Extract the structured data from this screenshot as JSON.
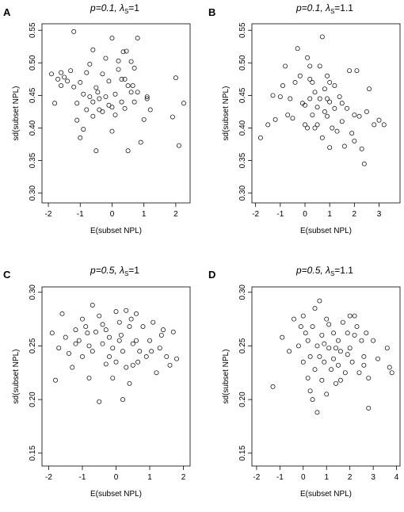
{
  "figure": {
    "panels": [
      {
        "letter": "A",
        "title_main": "p=0.1, λ",
        "title_sub": "S",
        "title_tail": "=1"
      },
      {
        "letter": "B",
        "title_main": "p=0.1, λ",
        "title_sub": "S",
        "title_tail": "=1.1"
      },
      {
        "letter": "C",
        "title_main": "p=0.5, λ",
        "title_sub": "S",
        "title_tail": "=1"
      },
      {
        "letter": "D",
        "title_main": "p=0.5, λ",
        "title_sub": "S",
        "title_tail": "=1.1"
      }
    ]
  },
  "chart_data": [
    {
      "type": "scatter",
      "panel": "A",
      "xlabel": "E(subset NPL)",
      "ylabel": "sd(subset NPL)",
      "xlim": [
        -2.2,
        2.45
      ],
      "ylim": [
        0.285,
        0.56
      ],
      "xticks": [
        -2,
        -1,
        0,
        1,
        2
      ],
      "yticks": [
        0.3,
        0.35,
        0.4,
        0.45,
        0.5,
        0.55
      ],
      "ytick_labels": [
        "0.30",
        "0.35",
        "0.40",
        "0.45",
        "0.50",
        "0.55"
      ],
      "points": [
        [
          -1.9,
          0.483
        ],
        [
          -1.8,
          0.438
        ],
        [
          -1.7,
          0.475
        ],
        [
          -1.6,
          0.465
        ],
        [
          -1.6,
          0.485
        ],
        [
          -1.5,
          0.478
        ],
        [
          -1.4,
          0.472
        ],
        [
          -1.3,
          0.488
        ],
        [
          -1.2,
          0.548
        ],
        [
          -1.2,
          0.463
        ],
        [
          -1.1,
          0.438
        ],
        [
          -1.1,
          0.412
        ],
        [
          -1.0,
          0.385
        ],
        [
          -1.0,
          0.47
        ],
        [
          -0.9,
          0.452
        ],
        [
          -0.9,
          0.398
        ],
        [
          -0.8,
          0.428
        ],
        [
          -0.8,
          0.485
        ],
        [
          -0.7,
          0.498
        ],
        [
          -0.7,
          0.448
        ],
        [
          -0.6,
          0.44
        ],
        [
          -0.6,
          0.418
        ],
        [
          -0.5,
          0.365
        ],
        [
          -0.5,
          0.462
        ],
        [
          -0.4,
          0.428
        ],
        [
          -0.4,
          0.445
        ],
        [
          -0.3,
          0.483
        ],
        [
          -0.3,
          0.425
        ],
        [
          -0.2,
          0.507
        ],
        [
          -0.2,
          0.448
        ],
        [
          -0.1,
          0.435
        ],
        [
          -0.1,
          0.472
        ],
        [
          0.0,
          0.538
        ],
        [
          0.0,
          0.432
        ],
        [
          0.0,
          0.395
        ],
        [
          0.1,
          0.42
        ],
        [
          0.1,
          0.452
        ],
        [
          0.2,
          0.49
        ],
        [
          0.2,
          0.503
        ],
        [
          0.3,
          0.475
        ],
        [
          0.3,
          0.44
        ],
        [
          0.4,
          0.43
        ],
        [
          0.4,
          0.475
        ],
        [
          0.5,
          0.465
        ],
        [
          0.5,
          0.365
        ],
        [
          0.6,
          0.502
        ],
        [
          0.6,
          0.455
        ],
        [
          0.7,
          0.492
        ],
        [
          0.7,
          0.44
        ],
        [
          0.8,
          0.538
        ],
        [
          0.8,
          0.455
        ],
        [
          0.9,
          0.378
        ],
        [
          1.0,
          0.413
        ],
        [
          1.1,
          0.445
        ],
        [
          1.1,
          0.448
        ],
        [
          1.2,
          0.428
        ],
        [
          1.9,
          0.417
        ],
        [
          2.0,
          0.477
        ],
        [
          2.1,
          0.373
        ],
        [
          2.25,
          0.438
        ],
        [
          -0.6,
          0.52
        ],
        [
          -0.45,
          0.455
        ],
        [
          0.35,
          0.517
        ],
        [
          0.45,
          0.518
        ],
        [
          0.65,
          0.465
        ]
      ]
    },
    {
      "type": "scatter",
      "panel": "B",
      "xlabel": "E(subset NPL)",
      "ylabel": "sd(subset NPL)",
      "xlim": [
        -2.15,
        3.85
      ],
      "ylim": [
        0.285,
        0.56
      ],
      "xticks": [
        -2,
        -1,
        0,
        1,
        2,
        3
      ],
      "yticks": [
        0.3,
        0.35,
        0.4,
        0.45,
        0.5,
        0.55
      ],
      "ytick_labels": [
        "0.30",
        "0.35",
        "0.40",
        "0.45",
        "0.50",
        "0.55"
      ],
      "points": [
        [
          -1.8,
          0.385
        ],
        [
          -1.5,
          0.405
        ],
        [
          -1.3,
          0.45
        ],
        [
          -1.2,
          0.413
        ],
        [
          -1.0,
          0.448
        ],
        [
          -0.9,
          0.465
        ],
        [
          -0.7,
          0.42
        ],
        [
          -0.6,
          0.445
        ],
        [
          -0.5,
          0.415
        ],
        [
          -0.4,
          0.47
        ],
        [
          -0.3,
          0.522
        ],
        [
          -0.2,
          0.48
        ],
        [
          -0.1,
          0.438
        ],
        [
          0.0,
          0.435
        ],
        [
          0.0,
          0.405
        ],
        [
          0.1,
          0.508
        ],
        [
          0.1,
          0.4
        ],
        [
          0.2,
          0.475
        ],
        [
          0.2,
          0.445
        ],
        [
          0.3,
          0.47
        ],
        [
          0.3,
          0.42
        ],
        [
          0.4,
          0.4
        ],
        [
          0.4,
          0.455
        ],
        [
          0.5,
          0.405
        ],
        [
          0.5,
          0.432
        ],
        [
          0.6,
          0.445
        ],
        [
          0.7,
          0.54
        ],
        [
          0.7,
          0.385
        ],
        [
          0.8,
          0.46
        ],
        [
          0.8,
          0.425
        ],
        [
          0.9,
          0.445
        ],
        [
          0.9,
          0.418
        ],
        [
          1.0,
          0.47
        ],
        [
          1.0,
          0.44
        ],
        [
          1.1,
          0.4
        ],
        [
          1.2,
          0.43
        ],
        [
          1.3,
          0.395
        ],
        [
          1.4,
          0.448
        ],
        [
          1.5,
          0.41
        ],
        [
          1.6,
          0.372
        ],
        [
          1.7,
          0.43
        ],
        [
          1.8,
          0.488
        ],
        [
          1.9,
          0.392
        ],
        [
          2.0,
          0.38
        ],
        [
          2.1,
          0.488
        ],
        [
          2.2,
          0.418
        ],
        [
          2.3,
          0.368
        ],
        [
          2.4,
          0.345
        ],
        [
          2.5,
          0.425
        ],
        [
          2.6,
          0.46
        ],
        [
          2.8,
          0.405
        ],
        [
          3.0,
          0.412
        ],
        [
          3.2,
          0.405
        ],
        [
          1.0,
          0.37
        ],
        [
          0.6,
          0.495
        ],
        [
          -0.8,
          0.495
        ],
        [
          1.5,
          0.438
        ],
        [
          0.2,
          0.495
        ],
        [
          2.0,
          0.42
        ],
        [
          1.2,
          0.465
        ],
        [
          0.9,
          0.48
        ]
      ]
    },
    {
      "type": "scatter",
      "panel": "C",
      "xlabel": "E(subset NPL)",
      "ylabel": "sd(subset NPL)",
      "xlim": [
        -2.2,
        2.2
      ],
      "ylim": [
        0.138,
        0.305
      ],
      "xticks": [
        -2,
        -1,
        0,
        1,
        2
      ],
      "yticks": [
        0.15,
        0.2,
        0.25,
        0.3
      ],
      "ytick_labels": [
        "0.15",
        "0.20",
        "0.25",
        "0.30"
      ],
      "points": [
        [
          -1.9,
          0.262
        ],
        [
          -1.8,
          0.218
        ],
        [
          -1.7,
          0.248
        ],
        [
          -1.6,
          0.28
        ],
        [
          -1.5,
          0.258
        ],
        [
          -1.4,
          0.243
        ],
        [
          -1.3,
          0.23
        ],
        [
          -1.2,
          0.265
        ],
        [
          -1.1,
          0.255
        ],
        [
          -1.0,
          0.275
        ],
        [
          -1.0,
          0.24
        ],
        [
          -0.9,
          0.268
        ],
        [
          -0.8,
          0.25
        ],
        [
          -0.8,
          0.22
        ],
        [
          -0.7,
          0.288
        ],
        [
          -0.7,
          0.245
        ],
        [
          -0.6,
          0.263
        ],
        [
          -0.5,
          0.278
        ],
        [
          -0.5,
          0.198
        ],
        [
          -0.4,
          0.252
        ],
        [
          -0.4,
          0.27
        ],
        [
          -0.3,
          0.265
        ],
        [
          -0.2,
          0.24
        ],
        [
          -0.2,
          0.258
        ],
        [
          -0.1,
          0.22
        ],
        [
          -0.1,
          0.248
        ],
        [
          0.0,
          0.282
        ],
        [
          0.0,
          0.235
        ],
        [
          0.1,
          0.272
        ],
        [
          0.1,
          0.255
        ],
        [
          0.2,
          0.2
        ],
        [
          0.2,
          0.245
        ],
        [
          0.3,
          0.283
        ],
        [
          0.3,
          0.23
        ],
        [
          0.4,
          0.268
        ],
        [
          0.4,
          0.215
        ],
        [
          0.5,
          0.252
        ],
        [
          0.5,
          0.232
        ],
        [
          0.6,
          0.28
        ],
        [
          0.6,
          0.255
        ],
        [
          0.7,
          0.245
        ],
        [
          0.8,
          0.268
        ],
        [
          0.9,
          0.24
        ],
        [
          1.0,
          0.255
        ],
        [
          1.1,
          0.272
        ],
        [
          1.2,
          0.225
        ],
        [
          1.3,
          0.248
        ],
        [
          1.4,
          0.265
        ],
        [
          1.5,
          0.24
        ],
        [
          1.6,
          0.232
        ],
        [
          1.7,
          0.263
        ],
        [
          1.8,
          0.238
        ],
        [
          -1.2,
          0.252
        ],
        [
          -0.3,
          0.233
        ],
        [
          0.15,
          0.26
        ],
        [
          0.65,
          0.235
        ],
        [
          1.05,
          0.245
        ],
        [
          1.35,
          0.26
        ],
        [
          -0.85,
          0.262
        ],
        [
          0.45,
          0.275
        ]
      ]
    },
    {
      "type": "scatter",
      "panel": "D",
      "xlabel": "E(subset NPL)",
      "ylabel": "sd(subset NPL)",
      "xlim": [
        -2.2,
        4.15
      ],
      "ylim": [
        0.138,
        0.305
      ],
      "xticks": [
        -2,
        -1,
        0,
        1,
        2,
        3,
        4
      ],
      "yticks": [
        0.15,
        0.2,
        0.25,
        0.3
      ],
      "ytick_labels": [
        "0.15",
        "0.20",
        "0.25",
        "0.30"
      ],
      "points": [
        [
          -1.3,
          0.212
        ],
        [
          -0.9,
          0.258
        ],
        [
          -0.6,
          0.245
        ],
        [
          -0.4,
          0.275
        ],
        [
          -0.2,
          0.25
        ],
        [
          0.0,
          0.278
        ],
        [
          0.0,
          0.235
        ],
        [
          0.1,
          0.262
        ],
        [
          0.2,
          0.255
        ],
        [
          0.2,
          0.22
        ],
        [
          0.3,
          0.24
        ],
        [
          0.4,
          0.268
        ],
        [
          0.4,
          0.2
        ],
        [
          0.5,
          0.285
        ],
        [
          0.5,
          0.228
        ],
        [
          0.6,
          0.25
        ],
        [
          0.6,
          0.188
        ],
        [
          0.7,
          0.292
        ],
        [
          0.7,
          0.24
        ],
        [
          0.8,
          0.218
        ],
        [
          0.8,
          0.26
        ],
        [
          0.9,
          0.235
        ],
        [
          1.0,
          0.275
        ],
        [
          1.0,
          0.205
        ],
        [
          1.1,
          0.248
        ],
        [
          1.2,
          0.228
        ],
        [
          1.3,
          0.262
        ],
        [
          1.3,
          0.238
        ],
        [
          1.4,
          0.215
        ],
        [
          1.5,
          0.255
        ],
        [
          1.5,
          0.232
        ],
        [
          1.6,
          0.245
        ],
        [
          1.7,
          0.272
        ],
        [
          1.8,
          0.225
        ],
        [
          1.9,
          0.262
        ],
        [
          2.0,
          0.248
        ],
        [
          2.0,
          0.278
        ],
        [
          2.1,
          0.235
        ],
        [
          2.2,
          0.26
        ],
        [
          2.3,
          0.268
        ],
        [
          2.4,
          0.225
        ],
        [
          2.5,
          0.255
        ],
        [
          2.6,
          0.24
        ],
        [
          2.7,
          0.262
        ],
        [
          2.8,
          0.22
        ],
        [
          2.8,
          0.192
        ],
        [
          3.0,
          0.255
        ],
        [
          3.2,
          0.238
        ],
        [
          3.6,
          0.248
        ],
        [
          3.7,
          0.23
        ],
        [
          3.8,
          0.225
        ],
        [
          0.3,
          0.208
        ],
        [
          1.1,
          0.27
        ],
        [
          1.9,
          0.242
        ],
        [
          0.9,
          0.252
        ],
        [
          1.6,
          0.218
        ],
        [
          2.2,
          0.278
        ],
        [
          -0.1,
          0.268
        ],
        [
          1.4,
          0.248
        ],
        [
          2.6,
          0.232
        ]
      ]
    }
  ]
}
